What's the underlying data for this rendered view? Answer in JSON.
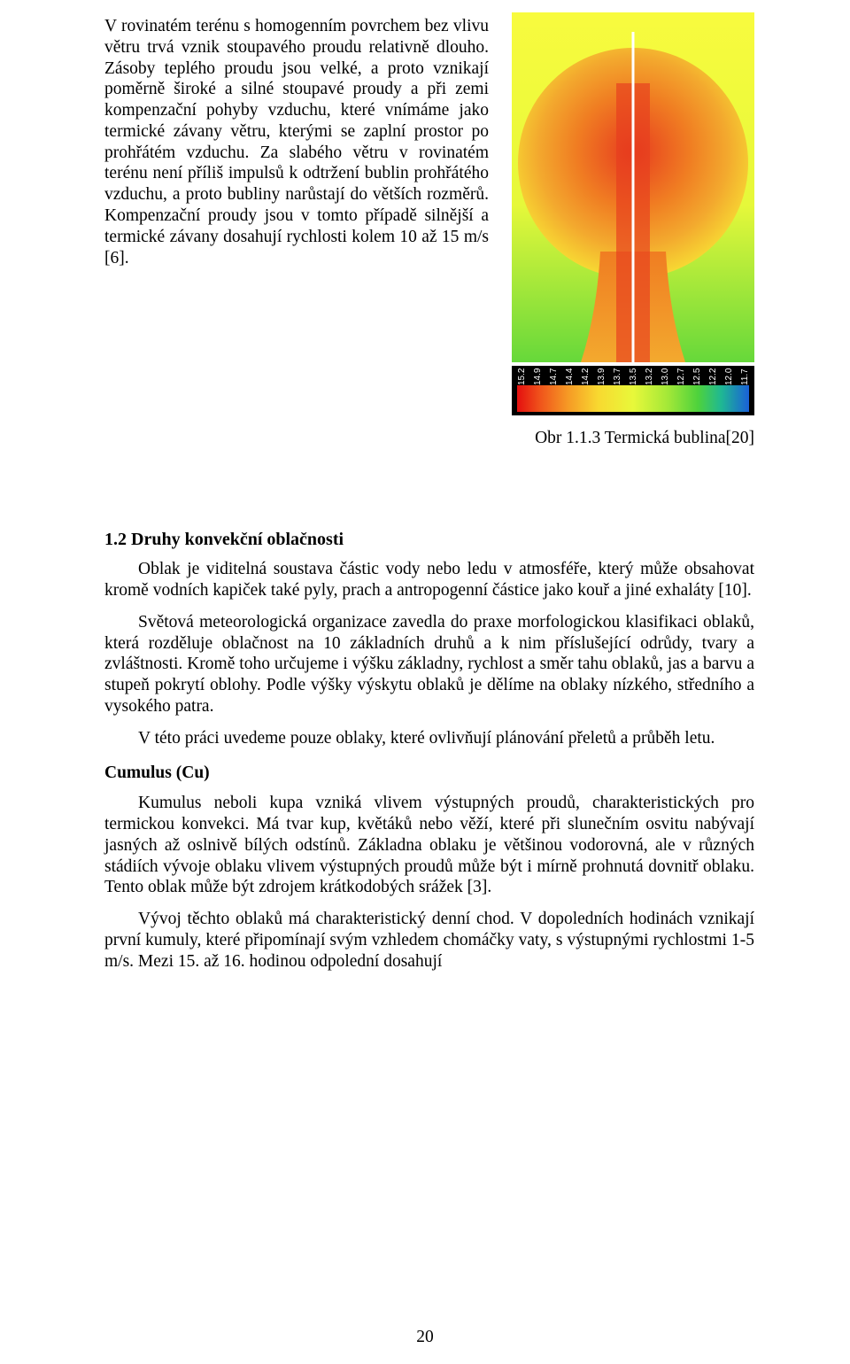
{
  "left_text": {
    "p1": "V rovinatém terénu s homogenním povrchem bez vlivu větru trvá vznik stoupavého proudu relativně dlouho.",
    "p2": "Zásoby teplého proudu jsou velké, a proto vznikají poměrně široké a silné stoupavé proudy a při zemi kompenzační pohyby vzduchu, které vnímáme jako termické závany větru, kterými se zaplní prostor po prohřátém vzduchu. Za slabého větru v rovinatém terénu není příliš impulsů k odtržení bublin prohřátého vzduchu, a proto bubliny narůstají do větších rozměrů. Kompenzační proudy jsou v tomto případě silnější a termické závany dosahují rychlosti kolem 10 až 15 m/s [6]."
  },
  "figure": {
    "caption": "Obr 1.1.3 Termická bublina[20]",
    "bg_grad_top": "#f8fb3e",
    "bg_grad_mid": "#e6f83a",
    "bg_grad_bot": "#66d83a",
    "bubble_core": "#e73c1f",
    "bubble_mid": "#f07d22",
    "bubble_outer": "#f3a92e",
    "bubble_edge": "#f7d933",
    "mid_line": "#ffffff"
  },
  "colorbar": {
    "bg": "#000000",
    "text_color": "#ffffff",
    "ticks": [
      "15.2",
      "14.9",
      "14.7",
      "14.4",
      "14.2",
      "13.9",
      "13.7",
      "13.5",
      "13.2",
      "13.0",
      "12.7",
      "12.5",
      "12.2",
      "12.0",
      "11.7"
    ],
    "gradient_stops": [
      {
        "pct": 0,
        "color": "#e40f0f"
      },
      {
        "pct": 10,
        "color": "#f0541b"
      },
      {
        "pct": 22,
        "color": "#f69a25"
      },
      {
        "pct": 35,
        "color": "#f8d930"
      },
      {
        "pct": 50,
        "color": "#e8f83a"
      },
      {
        "pct": 65,
        "color": "#a3e838"
      },
      {
        "pct": 78,
        "color": "#4ed23c"
      },
      {
        "pct": 88,
        "color": "#1fb893"
      },
      {
        "pct": 100,
        "color": "#1a60d8"
      }
    ]
  },
  "section": {
    "heading": "1.2 Druhy konvekční oblačnosti",
    "p1": "Oblak je viditelná soustava částic vody nebo ledu v atmosféře, který může obsahovat kromě vodních kapiček také pyly, prach a antropogenní částice jako kouř a jiné exhaláty [10].",
    "p2": "Světová meteorologická organizace zavedla do praxe morfologickou klasifikaci oblaků, která rozděluje oblačnost na 10 základních druhů a k nim příslušející odrůdy, tvary a zvláštnosti. Kromě toho určujeme i výšku základny, rychlost a směr tahu oblaků, jas a barvu a stupeň pokrytí oblohy. Podle výšky výskytu oblaků je dělíme na oblaky nízkého, středního a vysokého patra.",
    "p3": "V této práci uvedeme pouze oblaky, které ovlivňují plánování přeletů a průběh letu.",
    "sub1": "Cumulus (Cu)",
    "p4": "Kumulus neboli kupa vzniká vlivem výstupných proudů, charakteristických pro termickou konvekci. Má tvar kup, květáků nebo věží, které při slunečním osvitu nabývají jasných až oslnivě bílých odstínů. Základna oblaku je většinou vodorovná, ale v různých stádiích vývoje oblaku vlivem výstupných proudů může být i mírně prohnutá dovnitř oblaku. Tento oblak může být zdrojem krátkodobých srážek [3].",
    "p5": "Vývoj těchto oblaků má charakteristický denní chod. V dopoledních hodinách vznikají první kumuly, které připomínají svým vzhledem chomáčky vaty, s výstupnými rychlostmi 1-5 m/s. Mezi 15. až 16. hodinou odpolední dosahují"
  },
  "page_number": "20"
}
